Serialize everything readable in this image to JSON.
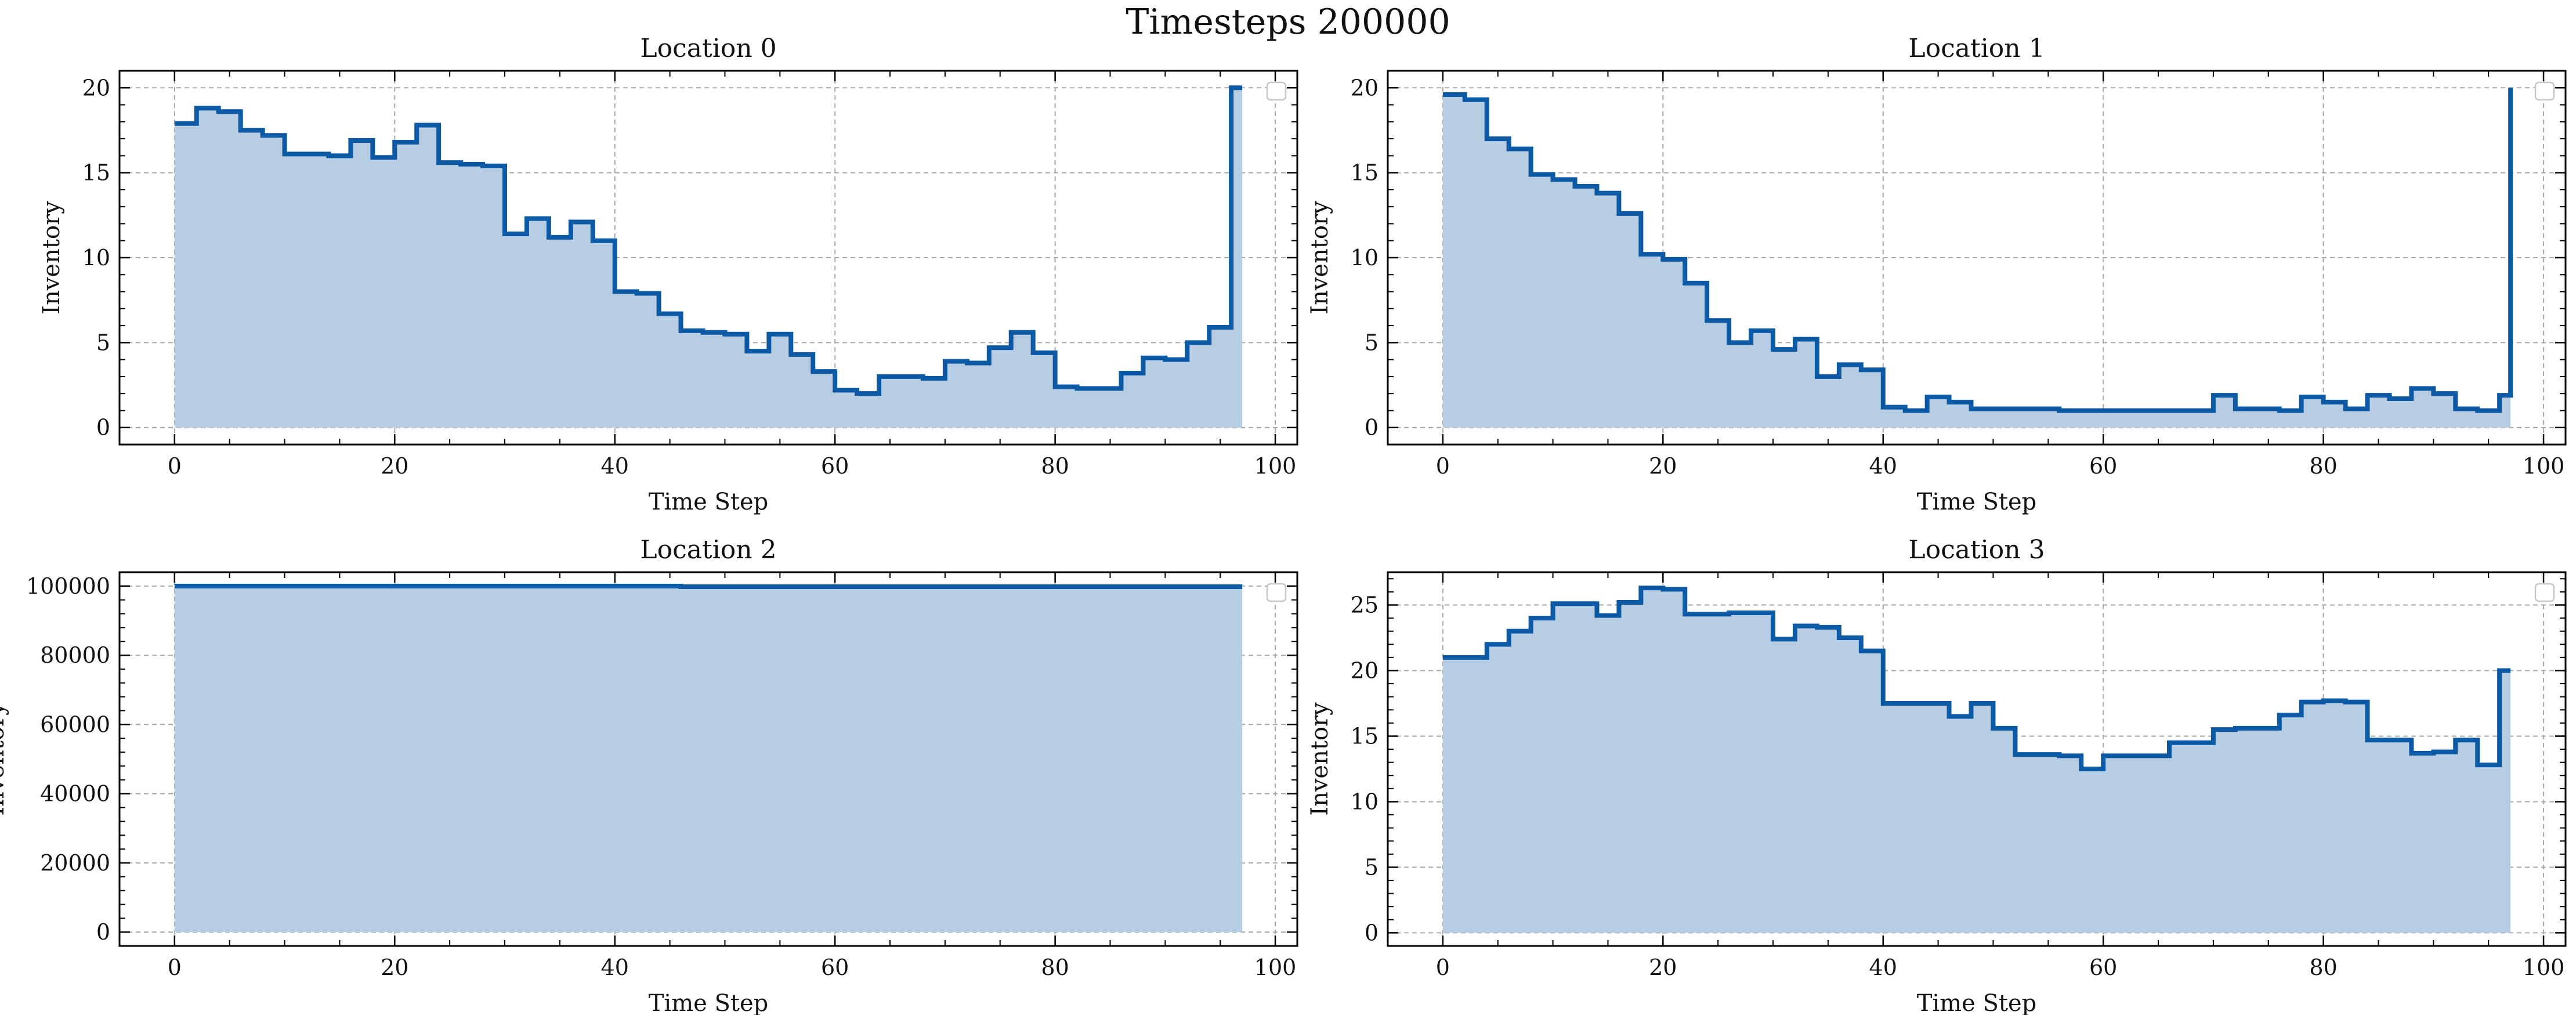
{
  "figure": {
    "suptitle": "Timesteps 200000"
  },
  "chart_data": [
    {
      "type": "area",
      "title": "Location 0",
      "xlabel": "Time Step",
      "ylabel": "Inventory",
      "xlim": [
        -5,
        102
      ],
      "ylim": [
        -1,
        21
      ],
      "xticks": [
        0,
        20,
        40,
        60,
        80,
        100
      ],
      "yticks": [
        0,
        5,
        10,
        15,
        20
      ],
      "grid": true,
      "legend": "top-right (empty)",
      "line_color": "#0c5aa6",
      "fill_color": "#b7cde3",
      "x": [
        0,
        2,
        4,
        6,
        8,
        10,
        12,
        14,
        16,
        18,
        20,
        22,
        24,
        26,
        28,
        30,
        32,
        34,
        36,
        38,
        40,
        42,
        44,
        46,
        48,
        50,
        52,
        54,
        56,
        58,
        60,
        62,
        64,
        66,
        68,
        70,
        72,
        74,
        76,
        78,
        80,
        82,
        84,
        86,
        88,
        90,
        92,
        94,
        96,
        97
      ],
      "values": [
        17.9,
        18.8,
        18.6,
        17.5,
        17.2,
        16.1,
        16.1,
        16.0,
        16.9,
        15.9,
        16.8,
        17.8,
        15.6,
        15.5,
        15.4,
        11.4,
        12.3,
        11.2,
        12.1,
        11.0,
        8.0,
        7.9,
        6.7,
        5.7,
        5.6,
        5.5,
        4.5,
        5.5,
        4.3,
        3.3,
        2.2,
        2.0,
        3.0,
        3.0,
        2.9,
        3.9,
        3.8,
        4.7,
        5.6,
        4.4,
        2.4,
        2.3,
        2.3,
        3.2,
        4.1,
        4.0,
        5.0,
        5.9,
        20.0,
        20.0
      ]
    },
    {
      "type": "area",
      "title": "Location 1",
      "xlabel": "Time Step",
      "ylabel": "Inventory",
      "xlim": [
        -5,
        102
      ],
      "ylim": [
        -1,
        21
      ],
      "xticks": [
        0,
        20,
        40,
        60,
        80,
        100
      ],
      "yticks": [
        0,
        5,
        10,
        15,
        20
      ],
      "grid": true,
      "legend": "top-right (empty)",
      "line_color": "#0c5aa6",
      "fill_color": "#b7cde3",
      "x": [
        0,
        2,
        4,
        6,
        8,
        10,
        12,
        14,
        16,
        18,
        20,
        22,
        24,
        26,
        28,
        30,
        32,
        34,
        36,
        38,
        40,
        42,
        44,
        46,
        48,
        50,
        52,
        54,
        56,
        58,
        60,
        62,
        64,
        66,
        68,
        70,
        72,
        74,
        76,
        78,
        80,
        82,
        84,
        86,
        88,
        90,
        92,
        94,
        96,
        97
      ],
      "values": [
        19.6,
        19.3,
        17.0,
        16.4,
        14.9,
        14.6,
        14.2,
        13.8,
        12.6,
        10.2,
        9.9,
        8.5,
        6.3,
        5.0,
        5.7,
        4.6,
        5.2,
        3.0,
        3.7,
        3.4,
        1.2,
        1.0,
        1.8,
        1.5,
        1.1,
        1.1,
        1.1,
        1.1,
        1.0,
        1.0,
        1.0,
        1.0,
        1.0,
        1.0,
        1.0,
        1.9,
        1.1,
        1.1,
        1.0,
        1.8,
        1.5,
        1.1,
        1.9,
        1.7,
        2.3,
        2.0,
        1.1,
        1.0,
        1.9,
        20.0
      ]
    },
    {
      "type": "area",
      "title": "Location 2",
      "xlabel": "Time Step",
      "ylabel": "Inventory",
      "xlim": [
        -5,
        102
      ],
      "ylim": [
        -4000,
        104000
      ],
      "xticks": [
        0,
        20,
        40,
        60,
        80,
        100
      ],
      "yticks": [
        0,
        20000,
        40000,
        60000,
        80000,
        100000
      ],
      "grid": true,
      "legend": "top-right (empty)",
      "line_color": "#0c5aa6",
      "fill_color": "#b7cde3",
      "x": [
        0,
        46,
        97
      ],
      "values": [
        100000,
        99800,
        99800
      ]
    },
    {
      "type": "area",
      "title": "Location 3",
      "xlabel": "Time Step",
      "ylabel": "Inventory",
      "xlim": [
        -5,
        102
      ],
      "ylim": [
        -1,
        27.5
      ],
      "xticks": [
        0,
        20,
        40,
        60,
        80,
        100
      ],
      "yticks": [
        0,
        5,
        10,
        15,
        20,
        25
      ],
      "grid": true,
      "legend": "top-right (empty)",
      "line_color": "#0c5aa6",
      "fill_color": "#b7cde3",
      "x": [
        0,
        2,
        4,
        6,
        8,
        10,
        12,
        14,
        16,
        18,
        20,
        22,
        24,
        26,
        28,
        30,
        32,
        34,
        36,
        38,
        40,
        42,
        44,
        46,
        48,
        50,
        52,
        54,
        56,
        58,
        60,
        62,
        64,
        66,
        68,
        70,
        72,
        74,
        76,
        78,
        80,
        82,
        84,
        86,
        88,
        90,
        92,
        94,
        96,
        97
      ],
      "values": [
        21.0,
        21.0,
        22.0,
        23.0,
        24.0,
        25.1,
        25.1,
        24.2,
        25.2,
        26.3,
        26.2,
        24.3,
        24.3,
        24.4,
        24.4,
        22.4,
        23.4,
        23.3,
        22.5,
        21.5,
        17.5,
        17.5,
        17.5,
        16.5,
        17.5,
        15.6,
        13.6,
        13.6,
        13.5,
        12.5,
        13.5,
        13.5,
        13.5,
        14.5,
        14.5,
        15.5,
        15.6,
        15.6,
        16.6,
        17.6,
        17.7,
        17.6,
        14.7,
        14.7,
        13.7,
        13.8,
        14.7,
        12.8,
        20.0,
        20.0
      ]
    }
  ]
}
